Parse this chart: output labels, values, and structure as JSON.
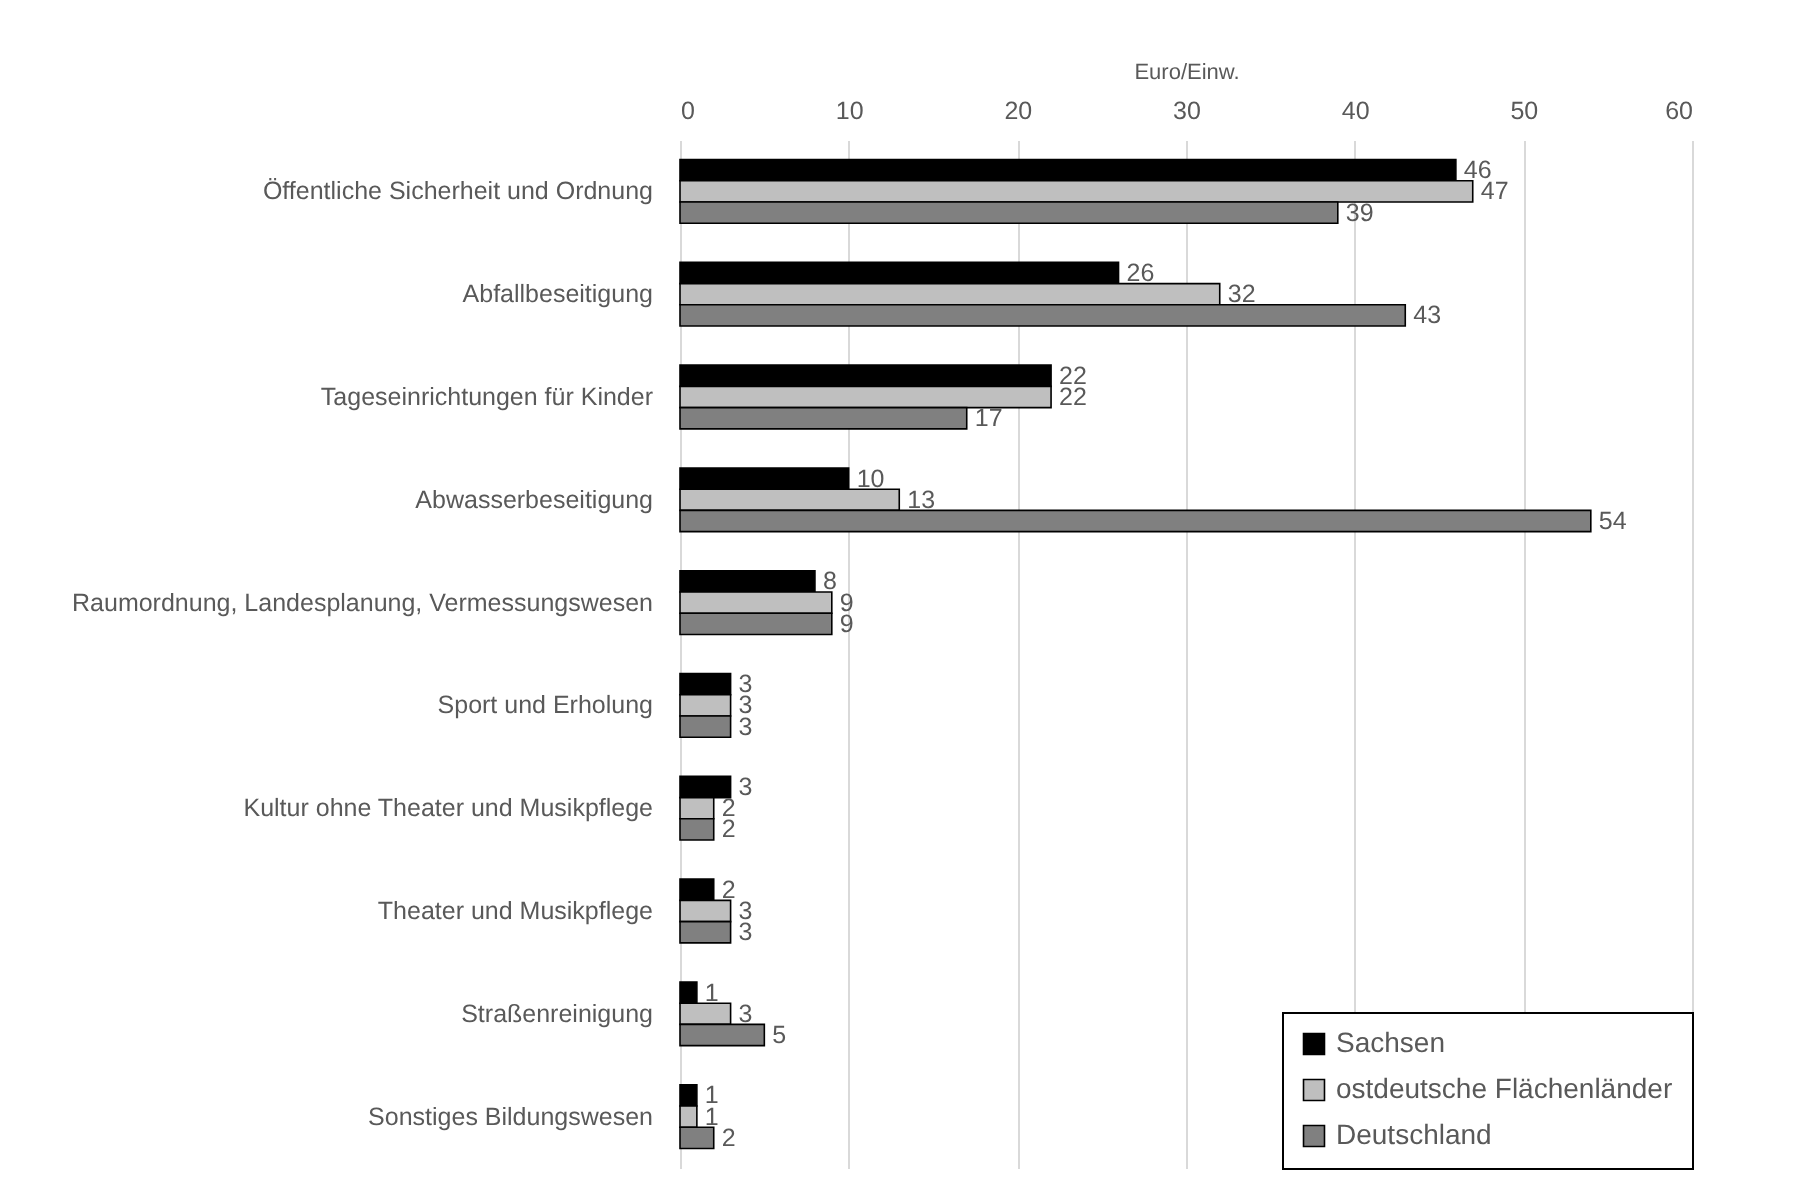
{
  "chart_data": {
    "type": "bar",
    "orientation": "horizontal",
    "xlabel": "Euro/Einw.",
    "categories": [
      "Öffentliche Sicherheit und Ordnung",
      "Abfallbeseitigung",
      "Tageseinrichtungen für Kinder",
      "Abwasserbeseitigung",
      "Raumordnung, Landesplanung, Vermessungswesen",
      "Sport und Erholung",
      "Kultur ohne Theater und Musikpflege",
      "Theater und Musikpflege",
      "Straßenreinigung",
      "Sonstiges Bildungswesen"
    ],
    "series": [
      {
        "name": "Sachsen",
        "color": "#000000",
        "values": [
          46,
          26,
          22,
          10,
          8,
          3,
          3,
          2,
          1,
          1
        ]
      },
      {
        "name": "ostdeutsche Flächenländer",
        "color": "#bfbfbf",
        "values": [
          47,
          32,
          22,
          13,
          9,
          3,
          2,
          3,
          3,
          1
        ]
      },
      {
        "name": "Deutschland",
        "color": "#808080",
        "values": [
          39,
          43,
          17,
          54,
          9,
          3,
          2,
          3,
          5,
          2
        ]
      }
    ],
    "xlim": [
      0,
      60
    ],
    "xticks": [
      0,
      10,
      20,
      30,
      40,
      50,
      60
    ],
    "grid": "x",
    "legend": "bottom right",
    "data_labels": true
  }
}
